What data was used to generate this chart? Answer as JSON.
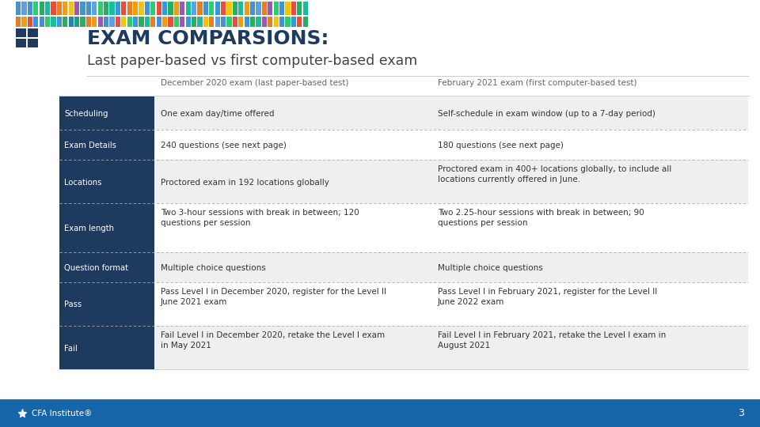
{
  "title": "EXAM COMPARSIONS:",
  "subtitle": "Last paper-based vs first computer-based exam",
  "col_header_1": "December 2020 exam (last paper-based test)",
  "col_header_2": "February 2021 exam (first computer-based test)",
  "rows": [
    {
      "label": "Scheduling",
      "col1": "One exam day/time offered",
      "col2": "Self-schedule in exam window (up to a 7-day period)"
    },
    {
      "label": "Exam Details",
      "col1": "240 questions (see next page)",
      "col2": "180 questions (see next page)"
    },
    {
      "label": "Locations",
      "col1": "Proctored exam in 192 locations globally",
      "col2": "Proctored exam in 400+ locations globally, to include all\nlocations currently offered in June."
    },
    {
      "label": "Exam length",
      "col1": "Two 3-hour sessions with break in between; 120\nquestions per session",
      "col2": "Two 2.25-hour sessions with break in between; 90\nquestions per session"
    },
    {
      "label": "Question format",
      "col1": "Multiple choice questions",
      "col2": "Multiple choice questions"
    },
    {
      "label": "Pass",
      "col1": "Pass Level I in December 2020, register for the Level II\nJune 2021 exam",
      "col2": "Pass Level I in February 2021, register for the Level II\nJune 2022 exam"
    },
    {
      "label": "Fail",
      "col1": "Fail Level I in December 2020, retake the Level I exam\nin May 2021",
      "col2": "Fail Level I in February 2021, retake the Level I exam in\nAugust 2021"
    }
  ],
  "label_bg": "#1e3a5f",
  "label_text_color": "#ffffff",
  "title_color": "#1e3a5f",
  "subtitle_color": "#444444",
  "col_header_color": "#666666",
  "row_bg_light": "#efefef",
  "row_bg_white": "#ffffff",
  "footer_bg": "#1565a8",
  "footer_text_color": "#ffffff",
  "page_num": "3",
  "background_color": "#ffffff",
  "dashed_color": "#aaaaaa",
  "separator_color": "#cccccc",
  "bar_colors_top": [
    "#4a8fd4",
    "#5ba3e0",
    "#4a8fd4",
    "#2ecc71",
    "#27ae60",
    "#1abc9c",
    "#e74c3c",
    "#e67e22",
    "#f39c12",
    "#f1c40f",
    "#9b59b6",
    "#3498db",
    "#4a8fd4",
    "#5ba3e0",
    "#2ecc71",
    "#27ae60",
    "#1abc9c",
    "#3498db",
    "#e74c3c",
    "#e67e22",
    "#f39c12",
    "#f1c40f",
    "#4a8fd4",
    "#2ecc71",
    "#e74c3c",
    "#3498db",
    "#27ae60",
    "#f39c12",
    "#9b59b6",
    "#1abc9c",
    "#5ba3e0",
    "#e67e22",
    "#4a8fd4",
    "#2ecc71",
    "#3498db",
    "#e74c3c",
    "#f1c40f",
    "#27ae60",
    "#1abc9c",
    "#f39c12",
    "#4a8fd4",
    "#5ba3e0",
    "#e67e22",
    "#9b59b6",
    "#2ecc71",
    "#3498db",
    "#f1c40f",
    "#e74c3c",
    "#27ae60",
    "#1abc9c"
  ],
  "bar_colors_mid": [
    "#e67e22",
    "#f39c12",
    "#e74c3c",
    "#3498db",
    "#4a8fd4",
    "#2ecc71",
    "#1abc9c",
    "#3498db",
    "#27ae60",
    "#2980b9",
    "#16a085",
    "#27ae60",
    "#e67e22",
    "#f39c12",
    "#9b59b6",
    "#4a8fd4",
    "#5ba3e0",
    "#e74c3c",
    "#f1c40f",
    "#2ecc71",
    "#3498db",
    "#27ae60",
    "#1abc9c",
    "#e67e22",
    "#4a8fd4",
    "#f39c12",
    "#e74c3c",
    "#2ecc71",
    "#9b59b6",
    "#3498db",
    "#27ae60",
    "#1abc9c",
    "#f1c40f",
    "#e67e22",
    "#5ba3e0",
    "#4a8fd4",
    "#2ecc71",
    "#e74c3c",
    "#f39c12",
    "#3498db",
    "#27ae60",
    "#1abc9c",
    "#9b59b6",
    "#e67e22",
    "#f1c40f",
    "#4a8fd4",
    "#2ecc71",
    "#3498db",
    "#e74c3c",
    "#27ae60"
  ]
}
